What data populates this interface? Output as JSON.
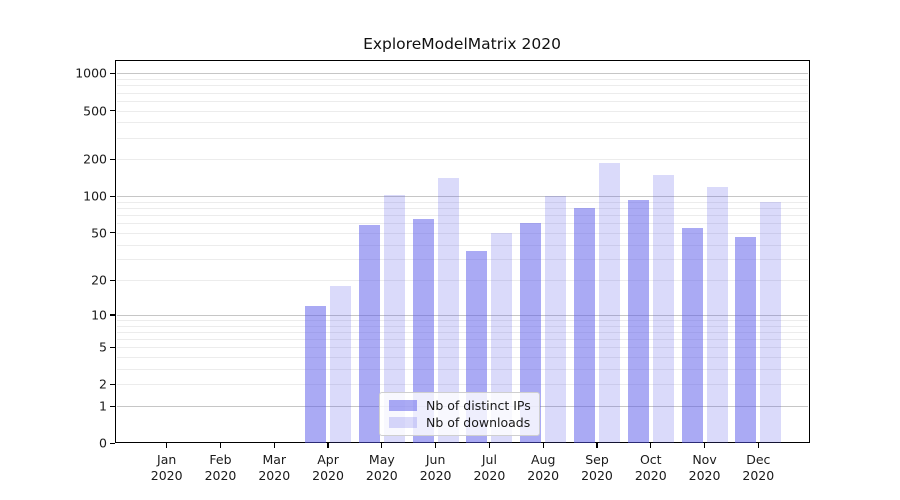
{
  "title": "ExploreModelMatrix 2020",
  "colors": {
    "background": "#ffffff",
    "bar_distinct_ips": "rgba(85,85,234,0.5)",
    "bar_downloads": "rgba(85,85,234,0.22)",
    "grid_major": "#c6c6c6",
    "grid_minor": "#ececec",
    "axis": "#000000",
    "text": "#1a1a1a"
  },
  "chart_data": {
    "type": "bar",
    "title": "ExploreModelMatrix 2020",
    "xlabel": "",
    "ylabel": "",
    "yscale": "log1p",
    "ylim": [
      0,
      1300
    ],
    "grid": true,
    "legend_position": "lower center",
    "y_ticks": [
      0,
      1,
      2,
      5,
      10,
      20,
      50,
      100,
      200,
      500,
      1000
    ],
    "categories": [
      "Jan 2020",
      "Feb 2020",
      "Mar 2020",
      "Apr 2020",
      "May 2020",
      "Jun 2020",
      "Jul 2020",
      "Aug 2020",
      "Sep 2020",
      "Oct 2020",
      "Nov 2020",
      "Dec 2020"
    ],
    "series": [
      {
        "key": "distinct_ips",
        "name": "Nb of distinct IPs",
        "color": "rgba(85,85,234,0.5)",
        "values": [
          0,
          0,
          0,
          12,
          58,
          65,
          35,
          60,
          80,
          94,
          55,
          46
        ]
      },
      {
        "key": "downloads",
        "name": "Nb of downloads",
        "color": "rgba(85,85,234,0.22)",
        "values": [
          0,
          0,
          0,
          18,
          102,
          140,
          50,
          101,
          186,
          150,
          120,
          90
        ]
      }
    ]
  }
}
